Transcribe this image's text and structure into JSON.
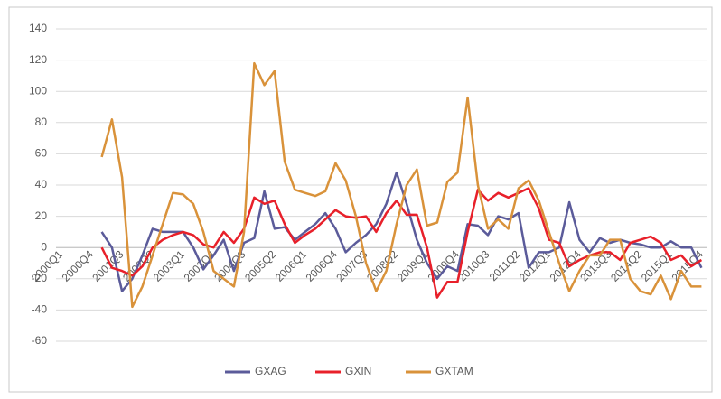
{
  "chart_data": {
    "type": "line",
    "categories": [
      "2000Q1",
      null,
      null,
      "2000Q4",
      null,
      null,
      "2001Q3",
      null,
      null,
      "2002Q2",
      null,
      null,
      "2003Q1",
      null,
      null,
      "2003Q4",
      null,
      null,
      "2004Q3",
      null,
      null,
      "2005Q2",
      null,
      null,
      "2006Q1",
      null,
      null,
      "2006Q4",
      null,
      null,
      "2007Q3",
      null,
      null,
      "2008Q2",
      null,
      null,
      "2009Q1",
      null,
      null,
      "2009Q4",
      null,
      null,
      "2010Q3",
      null,
      null,
      "2011Q2",
      null,
      null,
      "2012Q1",
      null,
      null,
      "2012Q4",
      null,
      null,
      "2013Q3",
      null,
      null,
      "2014Q2",
      null,
      null,
      "2015Q1",
      null,
      null,
      "2015Q4"
    ],
    "series": [
      {
        "name": "GXAG",
        "color": "#5b5b9a",
        "values": [
          null,
          null,
          null,
          null,
          10,
          0,
          -28,
          -20,
          -5,
          12,
          10,
          10,
          10,
          0,
          -14,
          -5,
          5,
          -15,
          3,
          6,
          36,
          12,
          13,
          5,
          10,
          15,
          22,
          12,
          -3,
          3,
          8,
          15,
          28,
          48,
          28,
          5,
          -10,
          -20,
          -12,
          -15,
          15,
          14,
          8,
          20,
          18,
          22,
          -13,
          -3,
          -3,
          0,
          29,
          5,
          -3,
          6,
          3,
          5,
          3,
          2,
          0,
          0,
          4,
          0,
          0,
          -13
        ]
      },
      {
        "name": "GXIN",
        "color": "#e8202a",
        "values": [
          null,
          null,
          null,
          null,
          0,
          -13,
          -15,
          -18,
          -12,
          0,
          5,
          8,
          10,
          8,
          2,
          0,
          10,
          3,
          12,
          32,
          28,
          30,
          15,
          3,
          8,
          12,
          18,
          24,
          20,
          19,
          20,
          10,
          22,
          30,
          21,
          21,
          0,
          -32,
          -22,
          -22,
          10,
          37,
          30,
          35,
          32,
          35,
          38,
          25,
          5,
          3,
          -12,
          -8,
          -5,
          -3,
          -3,
          -8,
          3,
          5,
          7,
          3,
          -8,
          -5,
          -12,
          -8
        ]
      },
      {
        "name": "GXTAM",
        "color": "#d9923a",
        "values": [
          null,
          null,
          null,
          null,
          58,
          82,
          45,
          -38,
          -25,
          -5,
          15,
          35,
          34,
          28,
          10,
          -15,
          -20,
          -25,
          10,
          118,
          104,
          113,
          55,
          37,
          35,
          33,
          36,
          54,
          43,
          20,
          -10,
          -28,
          -15,
          15,
          40,
          50,
          14,
          16,
          42,
          48,
          96,
          40,
          12,
          18,
          12,
          38,
          43,
          30,
          10,
          -10,
          -28,
          -15,
          -5,
          -5,
          5,
          5,
          -20,
          -28,
          -30,
          -18,
          -33,
          -15,
          -25,
          -25
        ]
      }
    ],
    "ylim": [
      -60,
      140
    ],
    "yticks": [
      -60,
      -40,
      -20,
      0,
      20,
      40,
      60,
      80,
      100,
      120,
      140
    ],
    "grid": true,
    "legend": "bottom"
  }
}
